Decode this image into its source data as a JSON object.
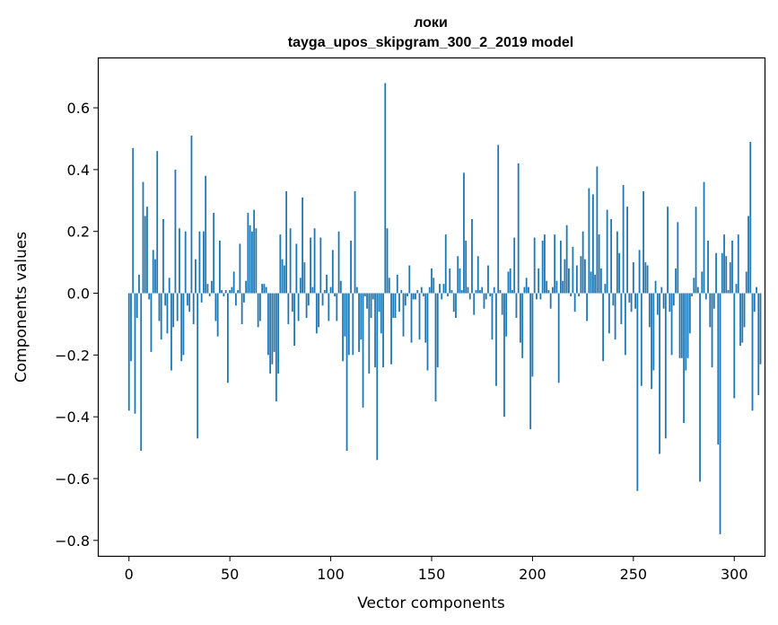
{
  "chart_data": {
    "type": "bar",
    "title_line1": "локи",
    "title_line2": "tayga_upos_skipgram_300_2_2019 model",
    "xlabel": "Vector components",
    "ylabel": "Components values",
    "xlim": [
      -15,
      315
    ],
    "ylim": [
      -0.85,
      0.76
    ],
    "x_ticks": [
      0,
      50,
      100,
      150,
      200,
      250,
      300
    ],
    "x_tick_labels": [
      "0",
      "50",
      "100",
      "150",
      "200",
      "250",
      "300"
    ],
    "y_ticks": [
      0.6,
      0.4,
      0.2,
      0.0,
      -0.2,
      -0.4,
      -0.6,
      -0.8
    ],
    "y_tick_labels": [
      "0.6",
      "0.4",
      "0.2",
      "0.0",
      "−0.2",
      "−0.4",
      "−0.6",
      "−0.8"
    ],
    "bar_color": "#1f77b4",
    "values": [
      -0.38,
      -0.22,
      0.47,
      -0.39,
      -0.08,
      0.06,
      -0.51,
      0.36,
      0.25,
      0.28,
      -0.02,
      -0.19,
      0.14,
      0.11,
      0.46,
      -0.09,
      -0.15,
      0.24,
      -0.04,
      -0.13,
      0.05,
      -0.25,
      -0.11,
      0.4,
      -0.09,
      0.21,
      -0.22,
      -0.2,
      0.2,
      -0.04,
      -0.06,
      0.51,
      -0.1,
      0.11,
      -0.47,
      0.2,
      -0.03,
      0.2,
      0.38,
      0.03,
      -0.01,
      0.04,
      0.26,
      -0.09,
      -0.14,
      0.17,
      0.01,
      -0.01,
      0.01,
      -0.29,
      0.01,
      0.02,
      0.07,
      -0.04,
      0.01,
      0.16,
      -0.1,
      -0.03,
      0.04,
      0.26,
      0.22,
      0.2,
      0.27,
      0.21,
      -0.11,
      -0.09,
      0.03,
      0.03,
      0.02,
      -0.2,
      -0.26,
      -0.23,
      -0.19,
      -0.35,
      -0.26,
      0.19,
      0.11,
      0.09,
      0.33,
      -0.1,
      0.21,
      -0.06,
      -0.17,
      0.16,
      -0.09,
      0.05,
      0.31,
      0.1,
      -0.08,
      -0.04,
      0.18,
      0.02,
      0.21,
      -0.13,
      -0.11,
      0.18,
      -0.04,
      0.01,
      0.06,
      -0.09,
      0.02,
      0.14,
      -0.01,
      -0.09,
      0.2,
      0.04,
      -0.22,
      -0.14,
      -0.51,
      -0.2,
      0.17,
      -0.2,
      0.33,
      0.02,
      -0.19,
      -0.15,
      -0.37,
      -0.01,
      -0.05,
      -0.26,
      -0.08,
      -0.02,
      -0.24,
      -0.54,
      -0.06,
      -0.13,
      -0.24,
      0.68,
      0.21,
      0.05,
      -0.23,
      -0.08,
      -0.08,
      0.06,
      -0.06,
      0.01,
      -0.14,
      -0.04,
      -0.01,
      0.09,
      -0.16,
      -0.02,
      -0.02,
      0.01,
      -0.15,
      0.02,
      -0.01,
      -0.16,
      -0.25,
      0.02,
      0.08,
      0.05,
      -0.35,
      -0.24,
      0.03,
      -0.02,
      0.03,
      0.19,
      -0.01,
      0.08,
      0.01,
      -0.06,
      -0.08,
      0.12,
      0.08,
      0.01,
      0.39,
      0.17,
      0.02,
      -0.02,
      0.24,
      -0.07,
      0.01,
      0.12,
      0.01,
      0.02,
      -0.05,
      -0.02,
      0.09,
      -0.01,
      -0.15,
      0.02,
      -0.3,
      0.48,
      0.01,
      -0.07,
      -0.4,
      -0.14,
      0.07,
      0.08,
      0.01,
      0.18,
      -0.08,
      0.42,
      -0.16,
      -0.21,
      0.02,
      0.05,
      0.02,
      -0.44,
      -0.27,
      0.18,
      -0.02,
      0.08,
      -0.02,
      0.17,
      0.19,
      0.04,
      0.01,
      -0.05,
      0.02,
      0.19,
      0.04,
      -0.29,
      0.17,
      0.04,
      0.11,
      0.22,
      0.08,
      -0.01,
      0.15,
      -0.06,
      0.09,
      -0.01,
      0.12,
      0.2,
      0.11,
      -0.09,
      0.34,
      0.07,
      0.32,
      0.06,
      0.41,
      0.19,
      0.08,
      -0.22,
      0.03,
      0.27,
      -0.13,
      0.24,
      -0.04,
      -0.15,
      0.2,
      0.13,
      -0.1,
      0.35,
      -0.2,
      0.28,
      -0.03,
      -0.06,
      0.1,
      -0.05,
      -0.64,
      0.14,
      -0.3,
      0.33,
      0.1,
      0.09,
      -0.11,
      -0.31,
      -0.25,
      0.04,
      -0.07,
      -0.52,
      0.02,
      -0.05,
      -0.47,
      0.28,
      -0.06,
      -0.2,
      -0.04,
      0.08,
      0.23,
      -0.21,
      -0.21,
      -0.42,
      -0.25,
      -0.21,
      -0.13,
      -0.01,
      0.05,
      0.28,
      0.02,
      -0.61,
      0.07,
      0.36,
      -0.02,
      0.17,
      -0.11,
      -0.24,
      -0.05,
      0.13,
      -0.49,
      -0.78,
      0.13,
      0.19,
      0.12,
      0.01,
      0.1,
      0.17,
      -0.34,
      0.03,
      0.19,
      -0.17,
      -0.16,
      -0.11,
      0.07,
      0.25,
      0.49,
      -0.38,
      -0.06,
      0.02,
      -0.33,
      -0.23
    ]
  }
}
